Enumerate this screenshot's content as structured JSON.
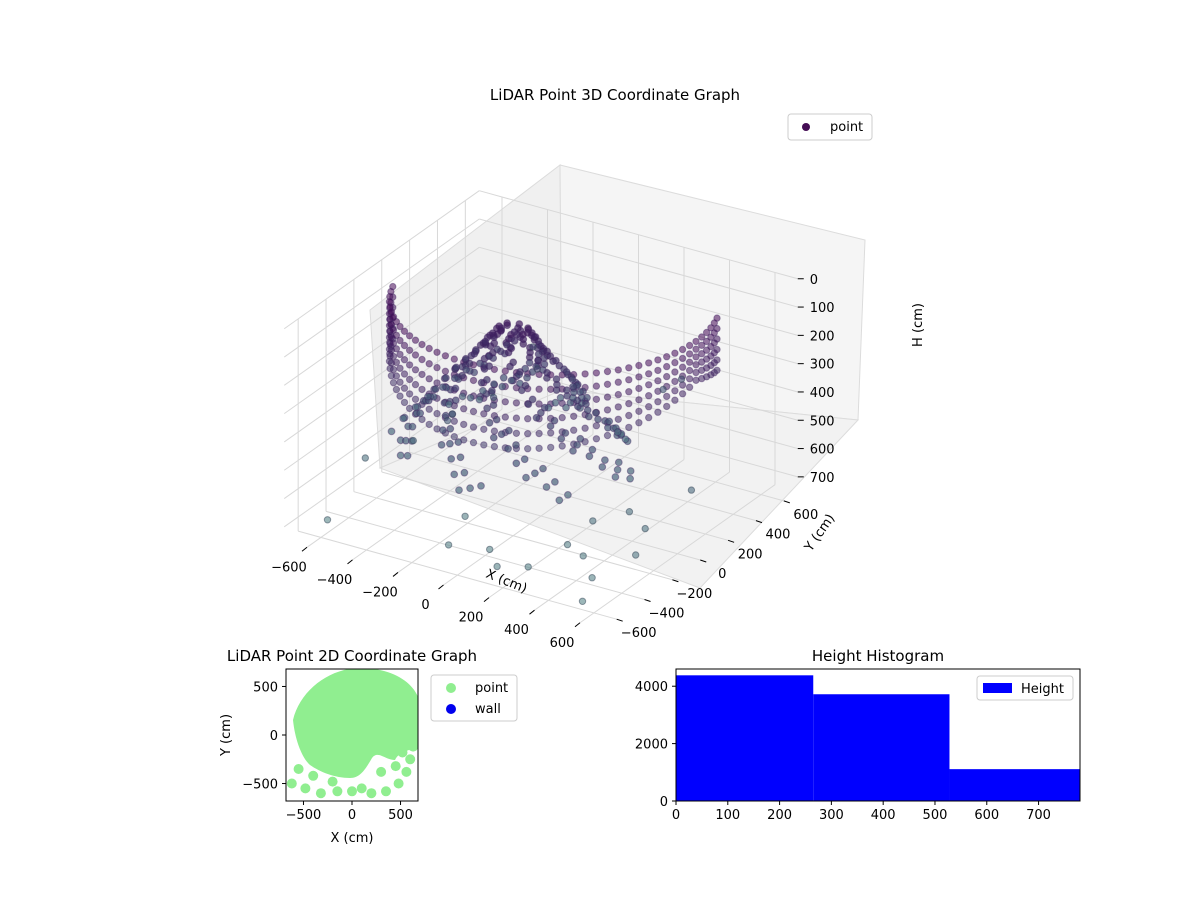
{
  "chart_data": [
    {
      "type": "scatter",
      "projection": "3d",
      "title": "LiDAR Point 3D Coordinate Graph",
      "xlabel": "X (cm)",
      "ylabel": "Y (cm)",
      "zlabel": "H (cm)",
      "xlim": [
        -700,
        700
      ],
      "ylim": [
        -700,
        700
      ],
      "zlim": [
        750,
        0
      ],
      "z_inverted": true,
      "xticks": [
        "−600",
        "−400",
        "−200",
        "0",
        "200",
        "400",
        "600"
      ],
      "yticks": [
        "−600",
        "−400",
        "−200",
        "0",
        "200",
        "400",
        "600"
      ],
      "zticks": [
        "0",
        "100",
        "200",
        "300",
        "400",
        "500",
        "600",
        "700"
      ],
      "legend": {
        "position": "upper-right",
        "entries": [
          "point"
        ]
      },
      "colormap": "viridis (by height)",
      "grid": true,
      "series": [
        {
          "name": "point",
          "description_points": [
            [
              -620,
              -520,
              720
            ],
            [
              -650,
              -200,
              620
            ],
            [
              -500,
              -100,
              560
            ],
            [
              -420,
              50,
              500
            ],
            [
              -380,
              -50,
              480
            ],
            [
              -300,
              150,
              450
            ],
            [
              -150,
              -300,
              680
            ],
            [
              -100,
              -500,
              700
            ],
            [
              50,
              -450,
              700
            ],
            [
              150,
              -560,
              700
            ],
            [
              250,
              -500,
              700
            ],
            [
              300,
              -300,
              680
            ],
            [
              400,
              -350,
              680
            ],
            [
              500,
              -450,
              700
            ],
            [
              550,
              -600,
              720
            ],
            [
              600,
              -300,
              650
            ],
            [
              550,
              -150,
              620
            ],
            [
              450,
              -100,
              600
            ],
            [
              350,
              -200,
              620
            ],
            [
              600,
              100,
              560
            ],
            [
              200,
              550,
              450
            ],
            [
              250,
              600,
              420
            ],
            [
              -200,
              300,
              380
            ],
            [
              -250,
              350,
              330
            ]
          ]
        }
      ]
    },
    {
      "type": "scatter",
      "title": "LiDAR Point 2D Coordinate Graph",
      "xlabel": "X (cm)",
      "ylabel": "Y (cm)",
      "xlim": [
        -680,
        680
      ],
      "ylim": [
        -680,
        680
      ],
      "xticks": [
        "−500",
        "0",
        "500"
      ],
      "yticks": [
        "−500",
        "0",
        "500"
      ],
      "legend": {
        "position": "outside-right",
        "entries": [
          "point",
          "wall"
        ]
      },
      "series": [
        {
          "name": "point",
          "color": "#90ee90",
          "x": [
            -620,
            -480,
            -320,
            -150,
            0,
            200,
            350,
            480,
            560,
            600,
            -550,
            -400,
            -200,
            100,
            300,
            450,
            520,
            630
          ],
          "y": [
            -500,
            -550,
            -600,
            -580,
            -580,
            -600,
            -580,
            -500,
            -380,
            -250,
            -350,
            -420,
            -480,
            -550,
            -380,
            -320,
            -180,
            -120
          ]
        },
        {
          "name": "wall",
          "color": "#0000ee",
          "x": [],
          "y": []
        }
      ]
    },
    {
      "type": "bar",
      "title": "Height Histogram",
      "xlabel": "",
      "ylabel": "",
      "xlim": [
        0,
        780
      ],
      "ylim": [
        0,
        4600
      ],
      "xticks": [
        "0",
        "100",
        "200",
        "300",
        "400",
        "500",
        "600",
        "700"
      ],
      "yticks": [
        "0",
        "2000",
        "4000"
      ],
      "legend": {
        "position": "upper-right",
        "entries": [
          "Height"
        ]
      },
      "series": [
        {
          "name": "Height",
          "color": "#0000ff",
          "bins": [
            [
              0,
              265,
              4380
            ],
            [
              265,
              528,
              3720
            ],
            [
              528,
              780,
              1110
            ]
          ]
        }
      ]
    }
  ]
}
